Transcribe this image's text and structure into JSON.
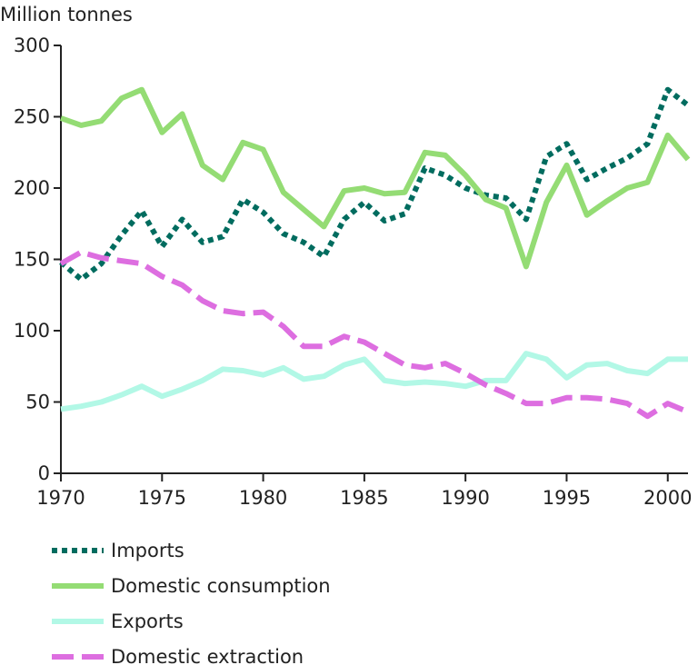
{
  "chart_data": {
    "type": "line",
    "ylabel": "Million tonnes",
    "ylim": [
      0,
      300
    ],
    "yticks": [
      0,
      50,
      100,
      150,
      200,
      250,
      300
    ],
    "xlim": [
      1970,
      2001
    ],
    "xticks": [
      1970,
      1975,
      1980,
      1985,
      1990,
      1995,
      2000
    ],
    "grid": false,
    "legend": "bottom",
    "x": [
      1970,
      1971,
      1972,
      1973,
      1974,
      1975,
      1976,
      1977,
      1978,
      1979,
      1980,
      1981,
      1982,
      1983,
      1984,
      1985,
      1986,
      1987,
      1988,
      1989,
      1990,
      1991,
      1992,
      1993,
      1994,
      1995,
      1996,
      1997,
      1998,
      1999,
      2000,
      2001
    ],
    "series": [
      {
        "name": "Imports",
        "color": "#006c5f",
        "style": "dotted",
        "values": [
          148,
          136,
          147,
          167,
          184,
          159,
          178,
          162,
          166,
          192,
          183,
          168,
          162,
          152,
          178,
          190,
          177,
          182,
          214,
          209,
          200,
          195,
          193,
          178,
          222,
          231,
          206,
          214,
          221,
          231,
          269,
          258
        ]
      },
      {
        "name": "Domestic consumption",
        "color": "#94dc74",
        "style": "solid",
        "values": [
          249,
          244,
          247,
          263,
          269,
          239,
          252,
          216,
          206,
          232,
          227,
          197,
          185,
          173,
          198,
          200,
          196,
          197,
          225,
          223,
          209,
          192,
          186,
          145,
          190,
          216,
          181,
          191,
          200,
          204,
          237,
          220
        ]
      },
      {
        "name": "Exports",
        "color": "#b2f8e6",
        "style": "solid",
        "values": [
          45,
          47,
          50,
          55,
          61,
          54,
          59,
          65,
          73,
          72,
          69,
          74,
          66,
          68,
          76,
          80,
          65,
          63,
          64,
          63,
          61,
          65,
          65,
          84,
          80,
          67,
          76,
          77,
          72,
          70,
          80,
          80
        ]
      },
      {
        "name": "Domestic extraction",
        "color": "#dd6ee0",
        "style": "dashed",
        "values": [
          147,
          155,
          151,
          149,
          147,
          138,
          132,
          121,
          114,
          112,
          113,
          103,
          89,
          89,
          96,
          92,
          84,
          76,
          74,
          77,
          70,
          62,
          56,
          49,
          49,
          53,
          53,
          52,
          49,
          40,
          49,
          43
        ]
      }
    ]
  }
}
